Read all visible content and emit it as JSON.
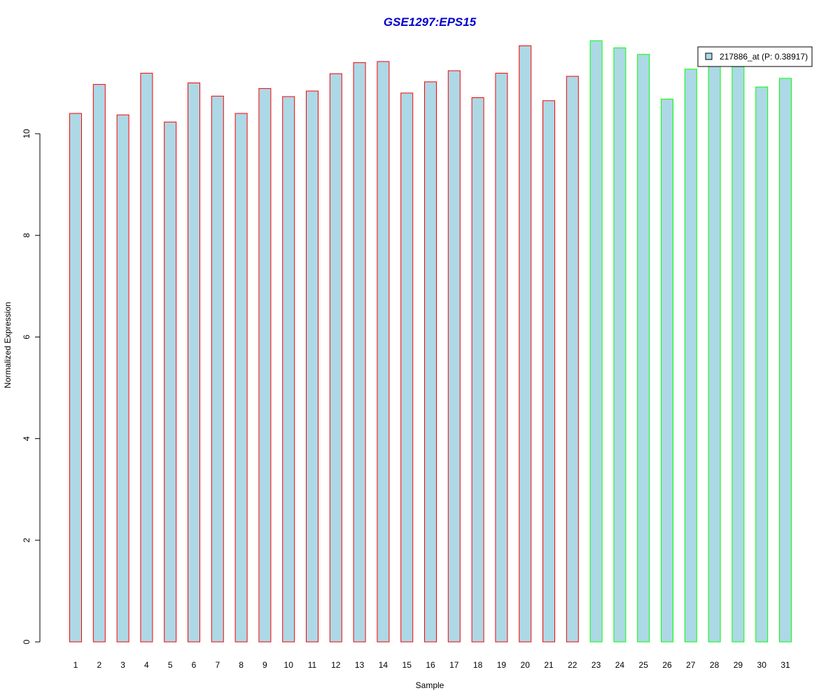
{
  "chart_data": {
    "type": "bar",
    "title": "GSE1297:EPS15",
    "xlabel": "Sample",
    "ylabel": "Normalized Expression",
    "ylim": [
      0,
      11.8
    ],
    "yticks": [
      0,
      2,
      4,
      6,
      8,
      10
    ],
    "grid": false,
    "legend_position": "top-right",
    "categories": [
      "1",
      "2",
      "3",
      "4",
      "5",
      "6",
      "7",
      "8",
      "9",
      "10",
      "11",
      "12",
      "13",
      "14",
      "15",
      "16",
      "17",
      "18",
      "19",
      "20",
      "21",
      "22",
      "23",
      "24",
      "25",
      "26",
      "27",
      "28",
      "29",
      "30",
      "31"
    ],
    "series": [
      {
        "name": "217886_at (P: 0.38917)",
        "values": [
          10.4,
          10.97,
          10.37,
          11.19,
          10.23,
          11.0,
          10.74,
          10.4,
          10.89,
          10.73,
          10.84,
          11.18,
          11.4,
          11.42,
          10.8,
          11.02,
          11.24,
          10.71,
          11.19,
          11.73,
          10.65,
          11.13,
          11.83,
          11.69,
          11.56,
          10.68,
          11.27,
          11.38,
          11.32,
          10.92,
          11.09
        ]
      }
    ],
    "group_colors": [
      "red",
      "red",
      "red",
      "red",
      "red",
      "red",
      "red",
      "red",
      "red",
      "red",
      "red",
      "red",
      "red",
      "red",
      "red",
      "red",
      "red",
      "red",
      "red",
      "red",
      "red",
      "red",
      "green",
      "green",
      "green",
      "green",
      "green",
      "green",
      "green",
      "green",
      "green"
    ]
  },
  "colors": {
    "bar_fill": "#add8e6",
    "red_border": "#ff0000",
    "green_border": "#00ff00",
    "title": "#0000cd",
    "axis": "#000000"
  }
}
